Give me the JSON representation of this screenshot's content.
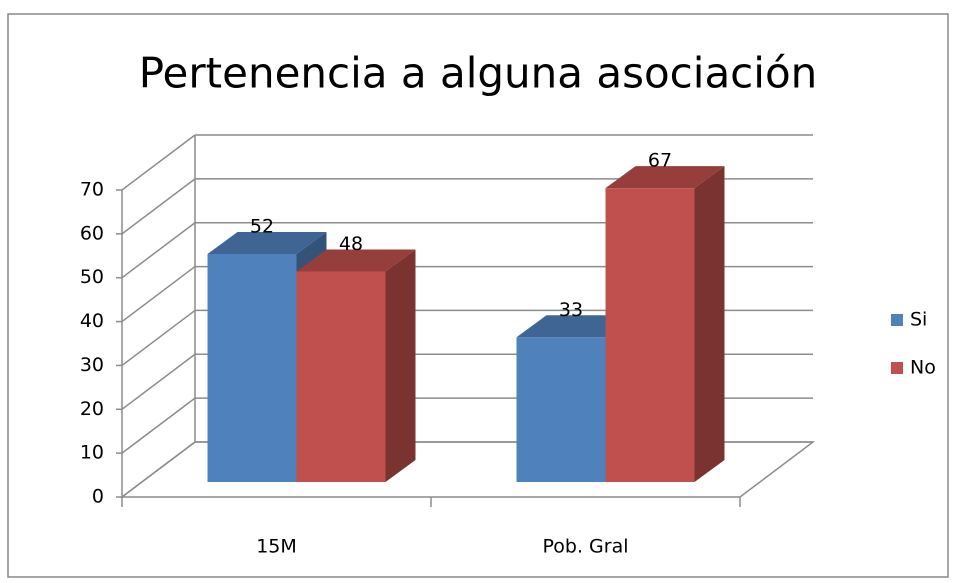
{
  "chart_data": {
    "type": "bar3d",
    "title": "Pertenencia a alguna asociación",
    "categories": [
      "15M",
      "Pob. Gral"
    ],
    "series": [
      {
        "name": "Si",
        "color": "#4f81bd",
        "values": [
          52,
          33
        ]
      },
      {
        "name": "No",
        "color": "#c0504d",
        "values": [
          48,
          67
        ]
      }
    ],
    "ylim": [
      0,
      70
    ],
    "yticks": [
      0,
      10,
      20,
      30,
      40,
      50,
      60,
      70
    ],
    "grid": true,
    "legend": "right"
  }
}
